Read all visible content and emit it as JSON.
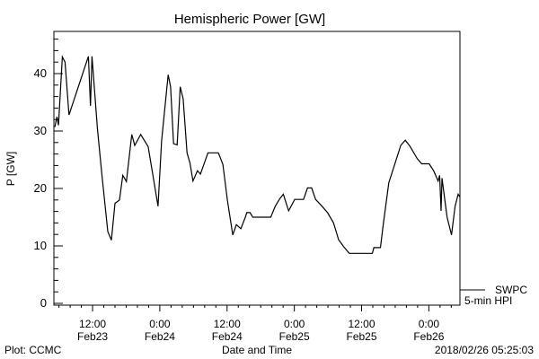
{
  "chart_data": {
    "type": "line",
    "title": "Hemispheric Power [GW]",
    "xlabel": "Date and Time",
    "ylabel": "P [GW]",
    "x_units": "hours since 2018-02-23 00:00",
    "xlim": [
      5.1,
      77.55
    ],
    "ylim": [
      0,
      47.5
    ],
    "yticks": [
      0,
      10,
      20,
      30,
      40
    ],
    "ytick_labels": [
      "0",
      "10",
      "20",
      "30",
      "40"
    ],
    "xticks": [
      {
        "x": 12,
        "time": "12:00",
        "date": "Feb23"
      },
      {
        "x": 24,
        "time": "0:00",
        "date": "Feb24"
      },
      {
        "x": 36,
        "time": "12:00",
        "date": "Feb24"
      },
      {
        "x": 48,
        "time": "0:00",
        "date": "Feb25"
      },
      {
        "x": 60,
        "time": "12:00",
        "date": "Feb25"
      },
      {
        "x": 72,
        "time": "0:00",
        "date": "Feb26"
      }
    ],
    "legend": {
      "placement": "bottom-right",
      "entries": [
        "SWPC",
        "5-min HPI"
      ]
    },
    "grid": false,
    "series": [
      {
        "name": "SWPC 5-min HPI",
        "color": "#000000",
        "x": [
          5.28,
          5.65,
          5.92,
          6.61,
          7.09,
          7.79,
          11.25,
          11.63,
          11.89,
          12.85,
          13.65,
          14.72,
          15.36,
          16.0,
          16.8,
          17.39,
          18.03,
          19.0,
          19.52,
          20.59,
          21.92,
          22.72,
          23.68,
          24.32,
          25.49,
          25.92,
          26.45,
          27.09,
          27.63,
          28.16,
          28.85,
          29.39,
          29.92,
          30.72,
          31.25,
          32.05,
          32.59,
          34.45,
          35.25,
          36.05,
          37.01,
          37.65,
          38.45,
          39.25,
          39.52,
          40.1,
          40.59,
          43.79,
          44.59,
          45.39,
          46.03,
          46.99,
          48.05,
          49.65,
          50.35,
          51.09,
          51.79,
          52.85,
          53.92,
          54.99,
          55.89,
          56.85,
          57.81,
          61.92,
          62.19,
          63.36,
          63.79,
          64.85,
          65.92,
          66.99,
          67.79,
          68.59,
          69.92,
          70.72,
          72.05,
          72.85,
          73.65,
          73.92,
          74.19,
          74.35,
          75.25,
          76.05,
          76.69,
          77.23,
          77.55
        ],
        "y": [
          30.7,
          32.5,
          31,
          42.9,
          42,
          32.8,
          43,
          34.4,
          43,
          30.5,
          22.6,
          12.5,
          11,
          17.4,
          18,
          22.3,
          21.2,
          29.4,
          27.5,
          29.4,
          27.3,
          22.6,
          16.9,
          28.3,
          39.8,
          37.7,
          27.8,
          27.6,
          37.7,
          35.6,
          26.2,
          24.4,
          21.3,
          23.1,
          22.5,
          24.7,
          26.2,
          26.2,
          24.2,
          18,
          11.9,
          13.7,
          13,
          15,
          15.8,
          15.8,
          15,
          15,
          16.9,
          18.2,
          19,
          16.1,
          18.1,
          18.1,
          20.1,
          20.1,
          18.1,
          17,
          15.8,
          14,
          11.1,
          9.8,
          8.7,
          8.7,
          9.7,
          9.7,
          13.2,
          21,
          24.2,
          27.5,
          28.4,
          27.4,
          25.2,
          24.3,
          24.3,
          23.1,
          21.3,
          22.3,
          16.1,
          21.8,
          15,
          11.9,
          16.9,
          19,
          18.5
        ]
      }
    ]
  },
  "footer": {
    "left": "Plot: CCMC",
    "right": "2018/02/26 05:25:03"
  }
}
